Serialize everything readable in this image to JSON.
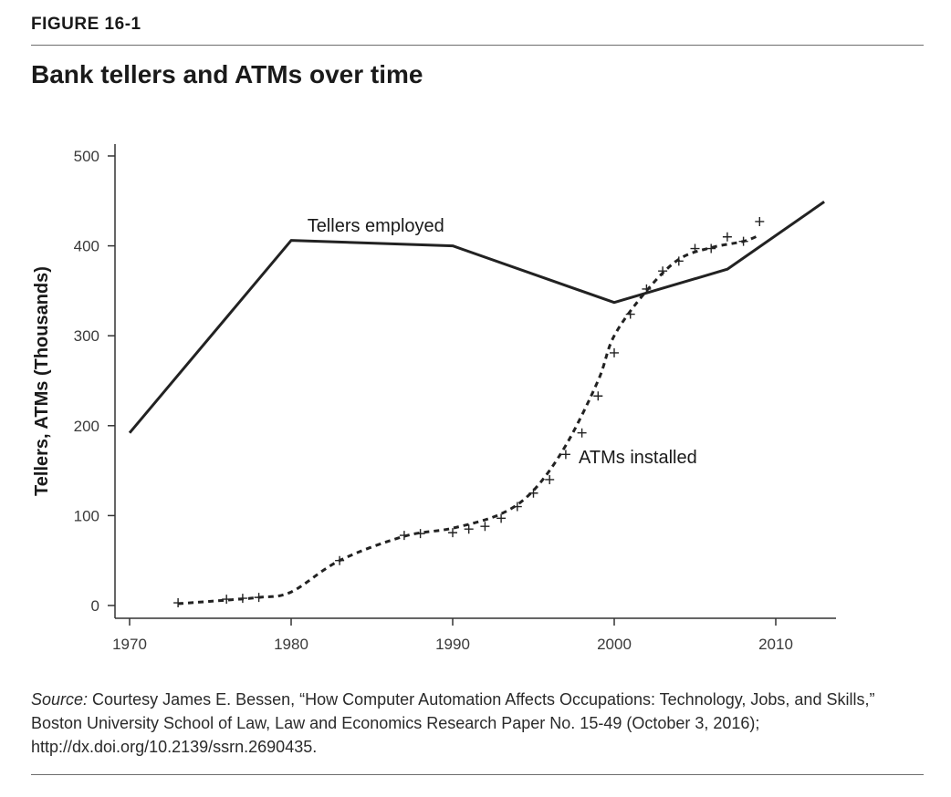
{
  "figure_label": "FIGURE 16-1",
  "source": {
    "prefix": "Source:",
    "text": " Courtesy James E. Bessen, “How Computer Automation Affects Occupations: Technology, Jobs, and Skills,” Boston University School of Law, Law and Economics Research Paper No. 15-49 (October 3, 2016); http://dx.doi.org/10.2139/ssrn.2690435."
  },
  "colors": {
    "line": "#222222",
    "axis": "#333333",
    "text": "#1a1a1a"
  },
  "chart_data": {
    "type": "line",
    "title": "Bank tellers and ATMs over time",
    "xlabel": "",
    "ylabel": "Tellers, ATMs (Thousands)",
    "xlim": [
      1970,
      2013
    ],
    "ylim": [
      0,
      500
    ],
    "xticks": [
      1970,
      1980,
      1990,
      2000,
      2010
    ],
    "yticks": [
      0,
      100,
      200,
      300,
      400,
      500
    ],
    "grid": false,
    "legend": "none",
    "series": [
      {
        "name": "Tellers employed",
        "style": "solid",
        "x": [
          1970,
          1980,
          1990,
          2000,
          2007,
          2013
        ],
        "y": [
          192,
          406,
          400,
          337,
          374,
          449
        ]
      },
      {
        "name": "ATMs installed",
        "style": "dashed-fit",
        "x": [
          1973,
          1976,
          1978,
          1980,
          1983,
          1987,
          1990,
          1993,
          1995,
          1997,
          1999,
          2000,
          2002,
          2004,
          2006,
          2008,
          2009
        ],
        "y": [
          2,
          6,
          9,
          15,
          50,
          77,
          86,
          102,
          128,
          178,
          250,
          300,
          350,
          385,
          398,
          405,
          412
        ]
      },
      {
        "name": "ATMs installed",
        "style": "markers",
        "marker": "+",
        "x": [
          1973,
          1976,
          1977,
          1978,
          1983,
          1987,
          1988,
          1990,
          1991,
          1992,
          1993,
          1994,
          1995,
          1996,
          1997,
          1998,
          1999,
          2000,
          2001,
          2002,
          2003,
          2004,
          2005,
          2006,
          2007,
          2008,
          2009
        ],
        "y": [
          3,
          7,
          8,
          9,
          50,
          78,
          80,
          81,
          85,
          88,
          97,
          110,
          125,
          140,
          168,
          192,
          233,
          281,
          324,
          352,
          372,
          383,
          397,
          397,
          410,
          405,
          427
        ]
      }
    ],
    "annotations": [
      {
        "text": "Tellers employed",
        "x": 1981,
        "y": 416
      },
      {
        "text": "ATMs installed",
        "x": 1997.8,
        "y": 158
      }
    ]
  }
}
